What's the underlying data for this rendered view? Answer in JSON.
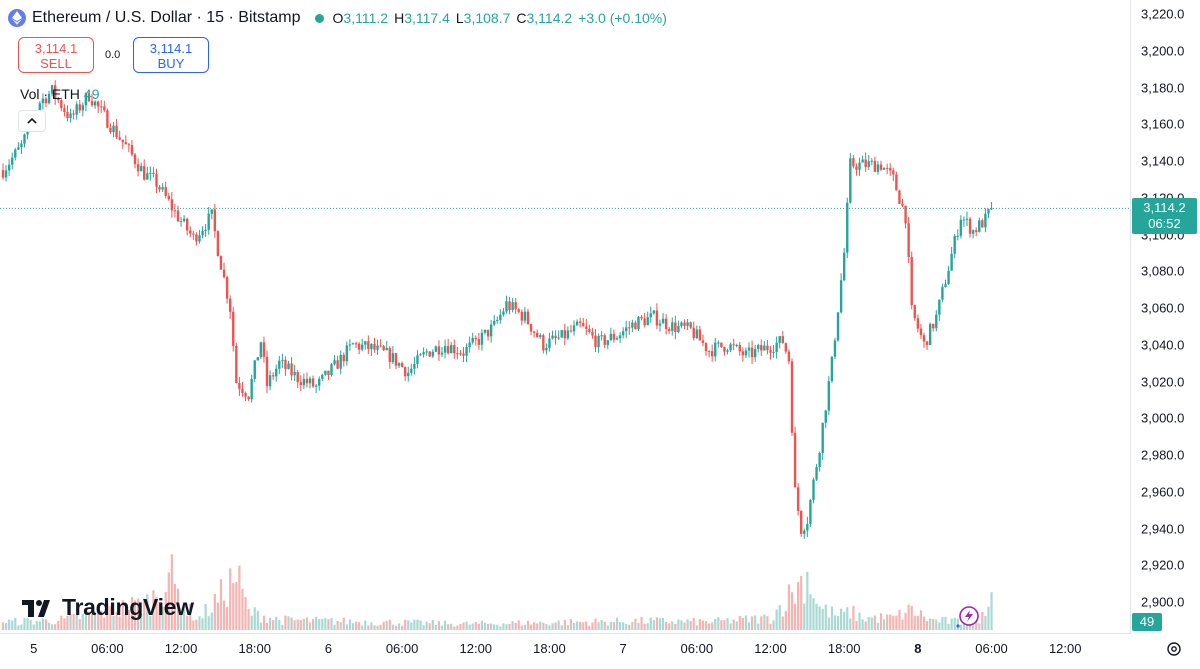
{
  "header": {
    "symbol_title": "Ethereum / U.S. Dollar · 15 · Bitstamp",
    "ohlc": [
      {
        "key": "O",
        "value": "3,111.2"
      },
      {
        "key": "H",
        "value": "3,117.4"
      },
      {
        "key": "L",
        "value": "3,108.7"
      },
      {
        "key": "C",
        "value": "3,114.2"
      },
      {
        "key": "",
        "value": "+3.0 (+0.10%)"
      }
    ]
  },
  "trade": {
    "sell_price": "3,114.1",
    "sell_label": "SELL",
    "spread": "0.0",
    "buy_price": "3,114.1",
    "buy_label": "BUY"
  },
  "volume_legend": {
    "label": "Vol · ETH",
    "value": "49"
  },
  "logo_text": "TradingView",
  "last_price": {
    "price": "3,114.2",
    "countdown": "06:52"
  },
  "volume_badge": "49",
  "colors": {
    "up": "#26a69a",
    "down": "#ef5350",
    "up_volume": "#a8d9d2",
    "down_volume": "#f5b4b2",
    "accent": "#2962ff"
  },
  "chart_data": {
    "type": "candlestick",
    "interval": "15",
    "y_ticks": [
      "3,220.0",
      "3,200.0",
      "3,180.0",
      "3,160.0",
      "3,140.0",
      "3,120.0",
      "3,100.0",
      "3,080.0",
      "3,060.0",
      "3,040.0",
      "3,020.0",
      "3,000.0",
      "2,980.0",
      "2,960.0",
      "2,940.0",
      "2,920.0",
      "2,900.0"
    ],
    "ylim": [
      2893,
      3225
    ],
    "x_ticks": [
      {
        "label": "5",
        "bold": false
      },
      {
        "label": "06:00",
        "bold": false
      },
      {
        "label": "12:00",
        "bold": false
      },
      {
        "label": "18:00",
        "bold": false
      },
      {
        "label": "6",
        "bold": false
      },
      {
        "label": "06:00",
        "bold": false
      },
      {
        "label": "12:00",
        "bold": false
      },
      {
        "label": "18:00",
        "bold": false
      },
      {
        "label": "7",
        "bold": false
      },
      {
        "label": "06:00",
        "bold": false
      },
      {
        "label": "12:00",
        "bold": false
      },
      {
        "label": "18:00",
        "bold": false
      },
      {
        "label": "8",
        "bold": true
      },
      {
        "label": "06:00",
        "bold": false
      },
      {
        "label": "12:00",
        "bold": false
      }
    ],
    "x_tick_bars": [
      10,
      34,
      58,
      82,
      106,
      130,
      154,
      178,
      202,
      226,
      250,
      274,
      298,
      322,
      346
    ],
    "last_price_value": 3114.2,
    "price_path_keypoints": [
      [
        0,
        3135
      ],
      [
        6,
        3148
      ],
      [
        12,
        3172
      ],
      [
        16,
        3178
      ],
      [
        22,
        3163
      ],
      [
        28,
        3176
      ],
      [
        34,
        3162
      ],
      [
        40,
        3148
      ],
      [
        46,
        3133
      ],
      [
        50,
        3128
      ],
      [
        56,
        3112
      ],
      [
        62,
        3098
      ],
      [
        68,
        3110
      ],
      [
        70,
        3092
      ],
      [
        74,
        3060
      ],
      [
        76,
        3020
      ],
      [
        80,
        3013
      ],
      [
        84,
        3042
      ],
      [
        86,
        3018
      ],
      [
        90,
        3030
      ],
      [
        96,
        3022
      ],
      [
        102,
        3017
      ],
      [
        108,
        3028
      ],
      [
        114,
        3040
      ],
      [
        120,
        3038
      ],
      [
        126,
        3034
      ],
      [
        132,
        3025
      ],
      [
        138,
        3036
      ],
      [
        144,
        3040
      ],
      [
        150,
        3036
      ],
      [
        156,
        3044
      ],
      [
        160,
        3050
      ],
      [
        164,
        3062
      ],
      [
        170,
        3055
      ],
      [
        176,
        3040
      ],
      [
        182,
        3044
      ],
      [
        188,
        3050
      ],
      [
        194,
        3041
      ],
      [
        200,
        3045
      ],
      [
        206,
        3052
      ],
      [
        212,
        3055
      ],
      [
        218,
        3050
      ],
      [
        224,
        3048
      ],
      [
        230,
        3037
      ],
      [
        236,
        3040
      ],
      [
        242,
        3034
      ],
      [
        248,
        3038
      ],
      [
        254,
        3042
      ],
      [
        256,
        3032
      ],
      [
        258,
        2960
      ],
      [
        260,
        2940
      ],
      [
        262,
        2945
      ],
      [
        266,
        2985
      ],
      [
        270,
        3030
      ],
      [
        274,
        3090
      ],
      [
        276,
        3138
      ],
      [
        280,
        3138
      ],
      [
        286,
        3138
      ],
      [
        290,
        3130
      ],
      [
        294,
        3110
      ],
      [
        296,
        3058
      ],
      [
        300,
        3040
      ],
      [
        304,
        3055
      ],
      [
        308,
        3082
      ],
      [
        312,
        3110
      ],
      [
        316,
        3102
      ],
      [
        320,
        3108
      ],
      [
        322,
        3114.2
      ]
    ],
    "volume_profile": [
      [
        0,
        8
      ],
      [
        20,
        10
      ],
      [
        36,
        20
      ],
      [
        48,
        28
      ],
      [
        52,
        45
      ],
      [
        54,
        60
      ],
      [
        56,
        42
      ],
      [
        60,
        20
      ],
      [
        64,
        12
      ],
      [
        70,
        30
      ],
      [
        76,
        55
      ],
      [
        80,
        18
      ],
      [
        90,
        10
      ],
      [
        120,
        8
      ],
      [
        150,
        6
      ],
      [
        210,
        9
      ],
      [
        230,
        8
      ],
      [
        250,
        12
      ],
      [
        255,
        30
      ],
      [
        258,
        40
      ],
      [
        262,
        55
      ],
      [
        266,
        22
      ],
      [
        272,
        14
      ],
      [
        276,
        18
      ],
      [
        280,
        12
      ],
      [
        290,
        12
      ],
      [
        296,
        20
      ],
      [
        302,
        10
      ],
      [
        312,
        8
      ],
      [
        320,
        14
      ],
      [
        322,
        70
      ]
    ]
  }
}
